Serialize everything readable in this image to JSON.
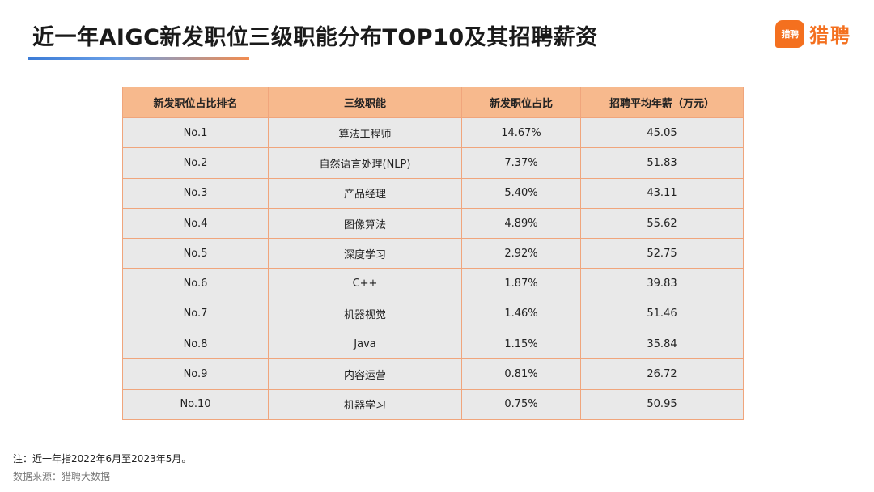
{
  "header": {
    "title": "近一年AIGC新发职位三级职能分布TOP10及其招聘薪资",
    "logo_badge": "猎聘",
    "logo_text": "猎聘"
  },
  "colors": {
    "accent": "#f4701f",
    "header_fill": "#f7b98d",
    "cell_fill": "#e9e9e9",
    "border": "#f0a57c"
  },
  "chart_data": {
    "type": "table",
    "title": "近一年AIGC新发职位三级职能分布TOP10及其招聘薪资",
    "columns": [
      "新发职位占比排名",
      "三级职能",
      "新发职位占比",
      "招聘平均年薪（万元）"
    ],
    "rows": [
      [
        "No.1",
        "算法工程师",
        "14.67%",
        "45.05"
      ],
      [
        "No.2",
        "自然语言处理(NLP)",
        "7.37%",
        "51.83"
      ],
      [
        "No.3",
        "产品经理",
        "5.40%",
        "43.11"
      ],
      [
        "No.4",
        "图像算法",
        "4.89%",
        "55.62"
      ],
      [
        "No.5",
        "深度学习",
        "2.92%",
        "52.75"
      ],
      [
        "No.6",
        "C++",
        "1.87%",
        "39.83"
      ],
      [
        "No.7",
        "机器视觉",
        "1.46%",
        "51.46"
      ],
      [
        "No.8",
        "Java",
        "1.15%",
        "35.84"
      ],
      [
        "No.9",
        "内容运营",
        "0.81%",
        "26.72"
      ],
      [
        "No.10",
        "机器学习",
        "0.75%",
        "50.95"
      ]
    ]
  },
  "footer": {
    "note": "注：近一年指2022年6月至2023年5月。",
    "source": "数据来源：猎聘大数据"
  }
}
